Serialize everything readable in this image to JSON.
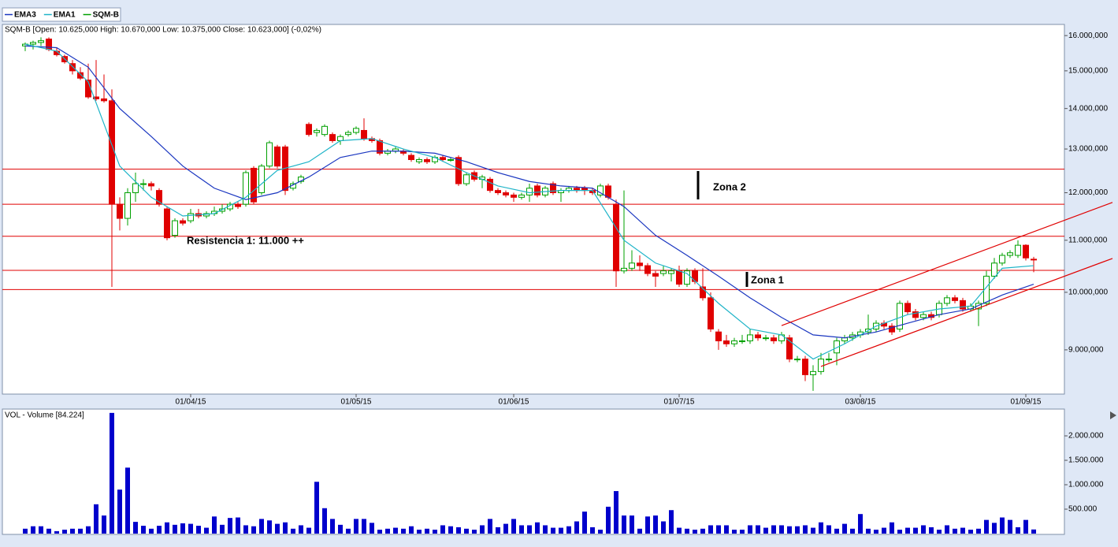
{
  "chart_data": [
    {
      "type": "candlestick",
      "name": "SQM-B",
      "title": "SQM-B [Open: 10.625,000  High: 10.670,000  Low: 10.375,000  Close: 10.623,000] (-0,02%)",
      "up_color": "#00a000",
      "down_color": "#e00000",
      "categories": [
        null,
        null,
        null,
        null,
        null,
        null,
        null,
        null,
        null,
        null,
        null,
        null,
        null,
        null,
        null,
        null,
        null,
        null,
        null,
        null,
        null,
        "01/04/15",
        null,
        null,
        null,
        null,
        null,
        null,
        null,
        null,
        null,
        null,
        null,
        null,
        null,
        null,
        null,
        null,
        null,
        null,
        null,
        null,
        "01/05/15",
        null,
        null,
        null,
        null,
        null,
        null,
        null,
        null,
        null,
        null,
        null,
        null,
        null,
        null,
        null,
        null,
        null,
        null,
        null,
        "01/06/15",
        null,
        null,
        null,
        null,
        null,
        null,
        null,
        null,
        null,
        null,
        null,
        null,
        null,
        null,
        null,
        null,
        null,
        null,
        null,
        null,
        "01/07/15",
        null,
        null,
        null,
        null,
        null,
        null,
        null,
        null,
        null,
        null,
        null,
        null,
        null,
        null,
        null,
        null,
        null,
        null,
        null,
        null,
        null,
        null,
        "03/08/15",
        null,
        null,
        null,
        null,
        null,
        null,
        null,
        null,
        null,
        null,
        null,
        null,
        null,
        null,
        null,
        null,
        null,
        null,
        null,
        null,
        "01/09/15",
        null
      ],
      "open": [
        15700,
        15750,
        15800,
        15900,
        15550,
        15400,
        15200,
        14950,
        14750,
        14300,
        14250,
        14200,
        11750,
        11450,
        12000,
        12200,
        12200,
        12050,
        11650,
        11100,
        11400,
        11400,
        11550,
        11500,
        11550,
        11600,
        11650,
        11750,
        11750,
        12550,
        12000,
        12600,
        13050,
        13050,
        12100,
        12250,
        13600,
        13400,
        13350,
        13350,
        13200,
        13350,
        13400,
        13450,
        13250,
        13200,
        12900,
        12950,
        12950,
        12850,
        12700,
        12750,
        12700,
        12800,
        12750,
        12800,
        12200,
        12450,
        12300,
        12300,
        12050,
        12000,
        11950,
        11900,
        11950,
        12150,
        11950,
        12200,
        12000,
        12050,
        12100,
        12100,
        12050,
        11950,
        12150,
        11750,
        10400,
        10450,
        10550,
        10500,
        10350,
        10350,
        10350,
        10400,
        10150,
        10400,
        10100,
        9900,
        9300,
        9150,
        9100,
        9150,
        9150,
        9250,
        9200,
        9200,
        9150,
        9200,
        8850,
        8850,
        8600,
        8650,
        8850,
        8950,
        9150,
        9200,
        9250,
        9300,
        9350,
        9450,
        9400,
        9350,
        9800,
        9650,
        9550,
        9600,
        9600,
        9800,
        9900,
        9850,
        9700,
        9700,
        9800,
        10300,
        10550,
        10700,
        10700,
        10900,
        10625
      ],
      "high": [
        15800,
        15850,
        15950,
        15950,
        15650,
        15450,
        15300,
        15100,
        15200,
        15300,
        14900,
        14500,
        11900,
        12100,
        12450,
        12300,
        12250,
        12100,
        11700,
        11450,
        11450,
        11650,
        11650,
        11600,
        11700,
        11750,
        11800,
        11800,
        12500,
        12600,
        12650,
        13200,
        13100,
        13100,
        12250,
        12400,
        13650,
        13500,
        13600,
        13400,
        13350,
        13450,
        13550,
        13750,
        13300,
        13250,
        13000,
        13050,
        13000,
        12900,
        12800,
        12800,
        12850,
        12850,
        12800,
        12850,
        12450,
        12500,
        12400,
        12350,
        12100,
        12050,
        12000,
        12000,
        12200,
        12200,
        12150,
        12250,
        12100,
        12150,
        12150,
        12150,
        12100,
        12200,
        12200,
        11850,
        12050,
        10800,
        10700,
        10550,
        10400,
        10500,
        10450,
        10500,
        10450,
        10450,
        10450,
        10000,
        9350,
        9250,
        9200,
        9250,
        9350,
        9300,
        9250,
        9250,
        9300,
        9250,
        8900,
        8900,
        8750,
        8950,
        8950,
        9200,
        9250,
        9300,
        9350,
        9600,
        9500,
        9500,
        9450,
        9850,
        9850,
        9700,
        9650,
        9650,
        9850,
        9950,
        9950,
        9900,
        9800,
        9850,
        10400,
        10650,
        10750,
        10800,
        11000,
        10920,
        10670
      ],
      "low": [
        15550,
        15600,
        15700,
        15550,
        15400,
        15200,
        14900,
        14750,
        14250,
        14200,
        14150,
        10100,
        11200,
        11300,
        11800,
        12050,
        12050,
        11700,
        11000,
        11050,
        11300,
        11350,
        11450,
        11450,
        11500,
        11550,
        11600,
        11650,
        11700,
        11750,
        11950,
        12550,
        12550,
        11950,
        12050,
        12200,
        13300,
        13300,
        13300,
        13150,
        13100,
        13300,
        13350,
        13200,
        13150,
        12850,
        12850,
        12900,
        12850,
        12700,
        12650,
        12650,
        12650,
        12700,
        12700,
        12150,
        12150,
        12250,
        12100,
        12000,
        11950,
        11900,
        11800,
        11850,
        11800,
        11900,
        11900,
        11950,
        11800,
        12000,
        12000,
        11950,
        11950,
        11900,
        11850,
        10100,
        10350,
        10400,
        10400,
        10300,
        10100,
        10300,
        10200,
        10100,
        10100,
        10150,
        9850,
        9300,
        9000,
        9050,
        9050,
        9100,
        9100,
        9150,
        9150,
        9100,
        9100,
        8800,
        8800,
        8500,
        8350,
        8600,
        8800,
        8750,
        9100,
        9150,
        9200,
        9250,
        9300,
        9350,
        9250,
        9300,
        9600,
        9500,
        9500,
        9500,
        9550,
        9750,
        9800,
        9650,
        9650,
        9400,
        9750,
        10250,
        10500,
        10650,
        10650,
        10600,
        10375
      ],
      "close": [
        15750,
        15800,
        15850,
        15600,
        15450,
        15250,
        15000,
        14800,
        14300,
        14250,
        14200,
        11750,
        11450,
        12000,
        12200,
        12200,
        12150,
        11750,
        11050,
        11400,
        11350,
        11550,
        11500,
        11550,
        11600,
        11650,
        11750,
        11700,
        12450,
        11800,
        12600,
        13150,
        12600,
        12050,
        12200,
        12350,
        13350,
        13450,
        13550,
        13200,
        13300,
        13400,
        13500,
        13250,
        13200,
        12900,
        12950,
        13000,
        12900,
        12750,
        12750,
        12700,
        12800,
        12750,
        12750,
        12200,
        12400,
        12300,
        12350,
        12050,
        12000,
        11950,
        11900,
        11950,
        12100,
        11950,
        12100,
        12000,
        12050,
        12100,
        12050,
        12050,
        12000,
        12150,
        11900,
        10400,
        10450,
        10550,
        10500,
        10350,
        10300,
        10400,
        10400,
        10150,
        10400,
        10200,
        9900,
        9350,
        9150,
        9100,
        9150,
        9150,
        9250,
        9200,
        9200,
        9150,
        9250,
        8850,
        8850,
        8600,
        8650,
        8850,
        8850,
        9150,
        9200,
        9250,
        9300,
        9350,
        9450,
        9400,
        9300,
        9800,
        9650,
        9550,
        9600,
        9550,
        9800,
        9900,
        9850,
        9700,
        9750,
        9800,
        10300,
        10550,
        10700,
        10750,
        10900,
        10650,
        10623
      ],
      "series": [
        {
          "name": "EMA3",
          "color": "#1a36c0",
          "x": [
            0,
            4,
            8,
            12,
            16,
            20,
            24,
            28,
            32,
            36,
            40,
            44,
            48,
            52,
            56,
            60,
            64,
            68,
            72,
            76,
            80,
            84,
            88,
            92,
            96,
            100,
            104,
            108,
            112,
            116,
            120,
            124,
            128
          ],
          "values": [
            15700,
            15650,
            15100,
            14000,
            13300,
            12600,
            12100,
            11850,
            12000,
            12350,
            12800,
            12950,
            12950,
            12900,
            12700,
            12450,
            12250,
            12150,
            12100,
            11700,
            11100,
            10700,
            10300,
            9900,
            9550,
            9250,
            9200,
            9300,
            9450,
            9600,
            9700,
            9950,
            10150
          ]
        },
        {
          "name": "EMA1",
          "color": "#1fb4c8",
          "x": [
            0,
            4,
            8,
            12,
            16,
            20,
            24,
            28,
            32,
            36,
            40,
            44,
            48,
            52,
            56,
            60,
            64,
            68,
            72,
            76,
            80,
            84,
            88,
            92,
            96,
            100,
            104,
            108,
            112,
            116,
            120,
            124,
            128
          ],
          "values": [
            15750,
            15550,
            14700,
            12600,
            11900,
            11500,
            11550,
            11900,
            12500,
            12700,
            13200,
            13250,
            13000,
            12800,
            12450,
            12150,
            12000,
            12050,
            12050,
            11000,
            10550,
            10350,
            9800,
            9350,
            9250,
            8850,
            9100,
            9400,
            9600,
            9700,
            9750,
            10450,
            10500
          ]
        }
      ],
      "ylim": [
        8300,
        16330
      ],
      "log_scale": true,
      "yticks": [
        {
          "value": 9000,
          "label": "9.000,000"
        },
        {
          "value": 10000,
          "label": "10.000,000"
        },
        {
          "value": 11000,
          "label": "11.000,000"
        },
        {
          "value": 12000,
          "label": "12.000,000"
        },
        {
          "value": 13000,
          "label": "13.000,000"
        },
        {
          "value": 14000,
          "label": "14.000,000"
        },
        {
          "value": 15000,
          "label": "15.000,000"
        },
        {
          "value": 16000,
          "label": "16.000,000"
        }
      ],
      "hlines": [
        12530,
        11750,
        11080,
        10410,
        10050
      ],
      "line_color": "#e00000",
      "trendlines": [
        {
          "x": [
            96,
            138
          ],
          "values": [
            9410,
            11790
          ]
        },
        {
          "x": [
            101,
            138
          ],
          "values": [
            8730,
            10640
          ]
        }
      ],
      "annotations": [
        "Resistencia 1: 11.000 ++",
        "Zona 2",
        "Zona 1"
      ]
    },
    {
      "type": "bar",
      "title": "VOL - Volume [84.224]",
      "color": "#0000cc",
      "values": [
        100000,
        150000,
        150000,
        100000,
        50000,
        80000,
        100000,
        100000,
        150000,
        600000,
        370000,
        2470000,
        900000,
        1350000,
        240000,
        160000,
        100000,
        160000,
        230000,
        180000,
        210000,
        200000,
        160000,
        120000,
        350000,
        180000,
        320000,
        330000,
        170000,
        150000,
        300000,
        270000,
        200000,
        230000,
        100000,
        170000,
        120000,
        1060000,
        520000,
        300000,
        180000,
        100000,
        300000,
        300000,
        220000,
        80000,
        100000,
        120000,
        100000,
        150000,
        80000,
        100000,
        80000,
        170000,
        150000,
        130000,
        100000,
        80000,
        170000,
        300000,
        130000,
        200000,
        300000,
        170000,
        170000,
        230000,
        170000,
        120000,
        120000,
        150000,
        250000,
        450000,
        130000,
        80000,
        550000,
        870000,
        370000,
        370000,
        100000,
        350000,
        370000,
        250000,
        480000,
        120000,
        100000,
        80000,
        100000,
        170000,
        170000,
        170000,
        80000,
        80000,
        170000,
        170000,
        120000,
        170000,
        170000,
        150000,
        150000,
        170000,
        120000,
        230000,
        170000,
        100000,
        200000,
        100000,
        400000,
        100000,
        80000,
        120000,
        230000,
        80000,
        120000,
        120000,
        170000,
        130000,
        80000,
        170000,
        100000,
        120000,
        80000,
        100000,
        280000,
        220000,
        330000,
        280000,
        130000,
        280000,
        84224
      ],
      "ylim": [
        0,
        2500000
      ],
      "yticks": [
        {
          "value": 500000,
          "label": "500.000"
        },
        {
          "value": 1000000,
          "label": "1.000.000"
        },
        {
          "value": 1500000,
          "label": "1.500.000"
        },
        {
          "value": 2000000,
          "label": "2.000.000"
        }
      ]
    }
  ]
}
